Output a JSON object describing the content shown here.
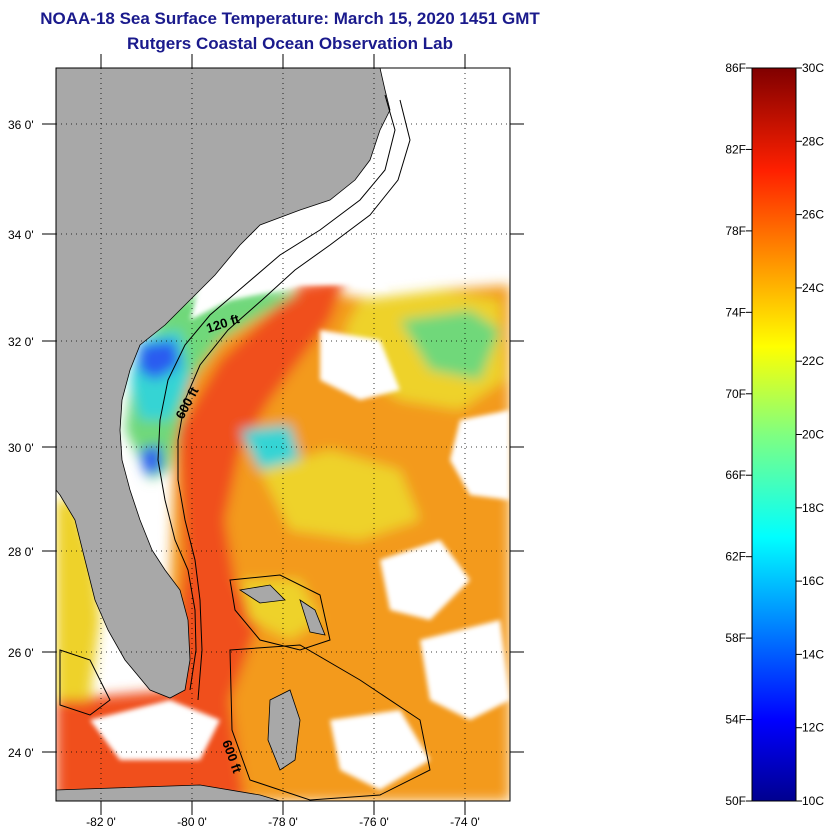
{
  "header": {
    "title": "NOAA-18 Sea Surface Temperature:  March 15, 2020 1451 GMT",
    "subtitle": "Rutgers Coastal Ocean Observation Lab"
  },
  "map": {
    "lat_labels": [
      "36 0'",
      "34 0'",
      "32 0'",
      "30 0'",
      "28 0'",
      "26 0'",
      "24 0'"
    ],
    "lon_labels": [
      "-82 0'",
      "-80 0'",
      "-78 0'",
      "-76 0'",
      "-74 0'"
    ],
    "lat_range": [
      23,
      37
    ],
    "lon_range": [
      -83,
      -73
    ],
    "contour_labels": [
      "120 ft",
      "600 ft",
      "600 ft"
    ],
    "colors": {
      "land": "#a8a8a8",
      "cloud": "#ffffff",
      "warm": "#f0501a",
      "orange": "#f39a1e",
      "yellow": "#eed22a",
      "green": "#6fd87a",
      "cyan": "#35d4d4",
      "blue": "#2a5cf0"
    }
  },
  "colorbar": {
    "f_labels": [
      "86F",
      "82F",
      "78F",
      "74F",
      "70F",
      "66F",
      "62F",
      "58F",
      "54F",
      "50F"
    ],
    "c_labels": [
      "30C",
      "28C",
      "26C",
      "24C",
      "22C",
      "20C",
      "18C",
      "16C",
      "14C",
      "12C",
      "10C"
    ],
    "range_c": [
      10,
      30
    ],
    "range_f": [
      50,
      86
    ]
  }
}
